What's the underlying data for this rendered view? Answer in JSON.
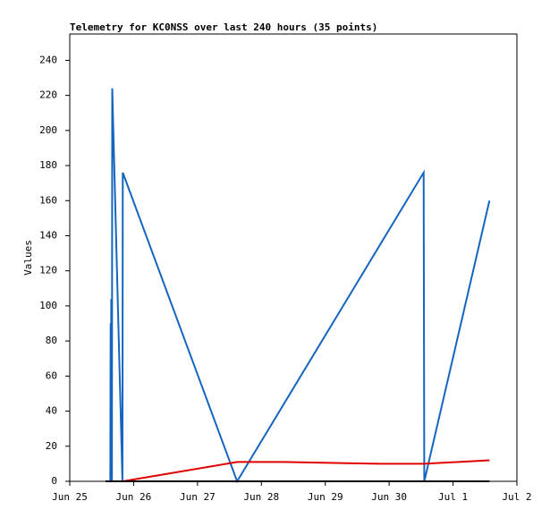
{
  "chart_data": {
    "type": "line",
    "title": "Telemetry for KC0NSS over last 240 hours (35 points)",
    "y_label": "Values",
    "xlim": [
      0,
      7
    ],
    "xticks": [
      {
        "value": 0,
        "label": "Jun 25"
      },
      {
        "value": 1,
        "label": "Jun 26"
      },
      {
        "value": 2,
        "label": "Jun 27"
      },
      {
        "value": 3,
        "label": "Jun 28"
      },
      {
        "value": 4,
        "label": "Jun 29"
      },
      {
        "value": 5,
        "label": "Jun 30"
      },
      {
        "value": 6,
        "label": "Jul 1"
      },
      {
        "value": 7,
        "label": "Jul 2"
      }
    ],
    "ylim": [
      0,
      255
    ],
    "yticks": [
      0,
      20,
      40,
      60,
      80,
      100,
      120,
      140,
      160,
      180,
      200,
      220,
      240
    ],
    "series": [
      {
        "color": "#1565c0",
        "x": [
          0.56,
          0.635,
          0.64,
          0.645,
          0.65,
          0.66,
          0.665,
          0.825,
          0.83,
          2.62,
          5.54,
          5.55,
          6.57
        ],
        "values": [
          0,
          0,
          90,
          0,
          104,
          0,
          224,
          0,
          176,
          0,
          176,
          0,
          160
        ]
      },
      {
        "color": "#e00000",
        "x": [
          0.83,
          2.62,
          3.35,
          4.85,
          5.55,
          6.57
        ],
        "values": [
          0,
          11,
          11,
          10,
          10,
          12
        ]
      },
      {
        "color": "#000000",
        "x": [
          0.56,
          6.57
        ],
        "values": [
          0,
          0
        ]
      }
    ]
  }
}
